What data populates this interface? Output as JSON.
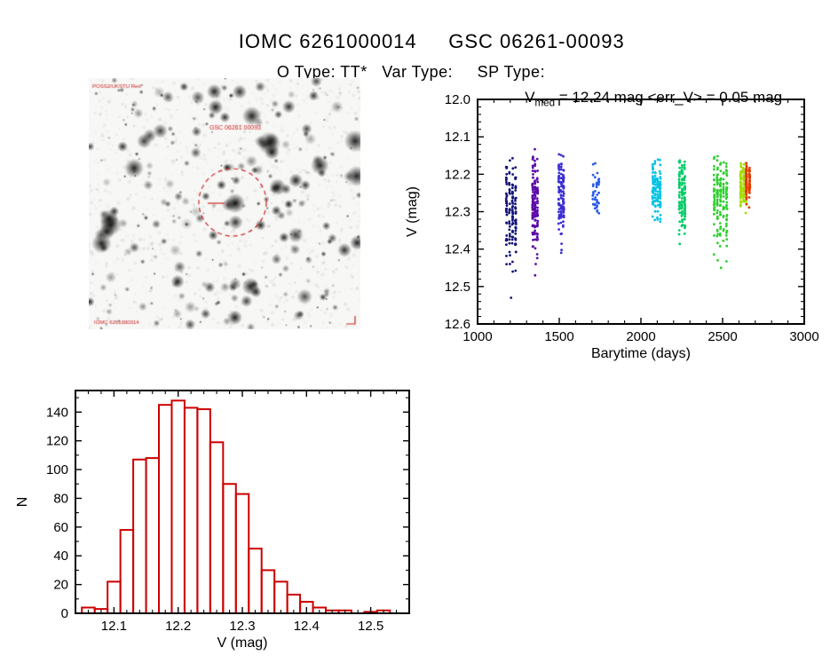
{
  "page": {
    "title": "IOMC 6261000014     GSC 06261-00093",
    "subtitle": "O Type: TT*   Var Type:     SP Type:"
  },
  "finding_chart": {
    "gsc_label": "GSC 06261 00093",
    "survey_note": "POSS2/UKSTU Red",
    "footer_note": "IOMC 6261000014",
    "annotation_color": "#cc2222"
  },
  "chart_data": [
    {
      "id": "lightcurve",
      "type": "scatter",
      "title": "Vmed = 12.24 mag <err_V> = 0.05 mag",
      "title_parts": {
        "base": "V",
        "sub": "med",
        "rest": " = 12.24 mag <err_V> = 0.05 mag"
      },
      "xlabel": "Barytime (days)",
      "ylabel": "V (mag)",
      "xlim": [
        1000,
        3000
      ],
      "ylim_top": 12.0,
      "ylim_bottom": 12.6,
      "y_axis_inverted": true,
      "xticks": [
        1000,
        1500,
        2000,
        2500,
        3000
      ],
      "xtick_labels": [
        "1000",
        "1500",
        "2000",
        "2500",
        "3000"
      ],
      "yticks": [
        12.0,
        12.1,
        12.2,
        12.3,
        12.4,
        12.5,
        12.6
      ],
      "ytick_labels": [
        "12.0",
        "12.1",
        "12.2",
        "12.3",
        "12.4",
        "12.5",
        "12.6"
      ],
      "x_minor_step": 100,
      "y_minor_step": 0.02,
      "grid": false,
      "point_radius": 1.4,
      "clusters": [
        {
          "x": 1205,
          "x_spread": 28,
          "columns": 4,
          "n": 140,
          "y_mean": 12.3,
          "y_sigma": 0.065,
          "y_min": 12.12,
          "y_max": 12.55,
          "color": "#14147a",
          "extra_points": [
            [
              1205,
              12.53
            ],
            [
              1215,
              12.46
            ],
            [
              1198,
              12.44
            ]
          ]
        },
        {
          "x": 1352,
          "x_spread": 14,
          "columns": 3,
          "n": 150,
          "y_mean": 12.28,
          "y_sigma": 0.06,
          "y_min": 12.13,
          "y_max": 12.49,
          "color": "#5c0ca8",
          "extra_points": [
            [
              1352,
              12.47
            ],
            [
              1356,
              12.44
            ]
          ]
        },
        {
          "x": 1512,
          "x_spread": 14,
          "columns": 3,
          "n": 120,
          "y_mean": 12.26,
          "y_sigma": 0.05,
          "y_min": 12.14,
          "y_max": 12.43,
          "color": "#3c2fd4",
          "extra_points": [
            [
              1512,
              12.41
            ]
          ]
        },
        {
          "x": 1725,
          "x_spread": 18,
          "columns": 4,
          "n": 40,
          "y_mean": 12.24,
          "y_sigma": 0.035,
          "y_min": 12.17,
          "y_max": 12.31,
          "color": "#2b5ce6",
          "extra_points": []
        },
        {
          "x": 2095,
          "x_spread": 22,
          "columns": 4,
          "n": 130,
          "y_mean": 12.24,
          "y_sigma": 0.04,
          "y_min": 12.16,
          "y_max": 12.34,
          "color": "#00c3e6",
          "extra_points": []
        },
        {
          "x": 2252,
          "x_spread": 16,
          "columns": 3,
          "n": 120,
          "y_mean": 12.26,
          "y_sigma": 0.05,
          "y_min": 12.16,
          "y_max": 12.41,
          "color": "#00cc66",
          "extra_points": []
        },
        {
          "x": 2487,
          "x_spread": 38,
          "columns": 5,
          "n": 170,
          "y_mean": 12.27,
          "y_sigma": 0.06,
          "y_min": 12.15,
          "y_max": 12.46,
          "color": "#2fd02f",
          "extra_points": [
            [
              2490,
              12.45
            ],
            [
              2470,
              12.43
            ]
          ]
        },
        {
          "x": 2628,
          "x_spread": 16,
          "columns": 3,
          "n": 130,
          "y_mean": 12.23,
          "y_sigma": 0.03,
          "y_min": 12.16,
          "y_max": 12.31,
          "color": "#a3dd00",
          "extra_points": []
        },
        {
          "x": 2655,
          "x_spread": 10,
          "columns": 2,
          "n": 100,
          "y_mean": 12.22,
          "y_sigma": 0.025,
          "y_min": 12.17,
          "y_max": 12.29,
          "color": "#e63900",
          "extra_points": []
        }
      ]
    },
    {
      "id": "histogram",
      "type": "bar",
      "xlabel": "V (mag)",
      "ylabel": "N",
      "xlim": [
        12.04,
        12.56
      ],
      "ylim": [
        0,
        155
      ],
      "xticks": [
        12.1,
        12.2,
        12.3,
        12.4,
        12.5
      ],
      "xtick_labels": [
        "12.1",
        "12.2",
        "12.3",
        "12.4",
        "12.5"
      ],
      "yticks": [
        0,
        20,
        40,
        60,
        80,
        100,
        120,
        140
      ],
      "ytick_labels": [
        "0",
        "20",
        "40",
        "60",
        "80",
        "100",
        "120",
        "140"
      ],
      "x_minor_step": 0.02,
      "y_minor_step": 10,
      "grid": false,
      "bin_start": 12.05,
      "bin_width": 0.02,
      "counts": [
        4,
        3,
        22,
        58,
        107,
        108,
        145,
        148,
        143,
        142,
        119,
        90,
        83,
        45,
        30,
        22,
        13,
        8,
        4,
        2,
        2,
        0,
        1,
        2,
        0
      ],
      "bar_color": "#cc0000"
    }
  ]
}
